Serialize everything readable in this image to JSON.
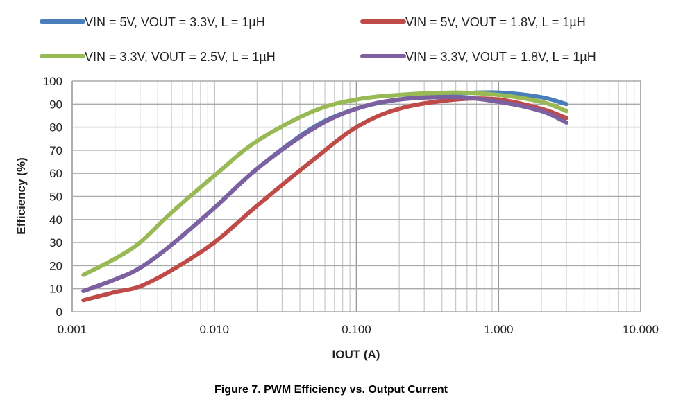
{
  "chart_data": {
    "type": "line",
    "title": "Figure 7. PWM Efficiency vs. Output Current",
    "xlabel": "IOUT (A)",
    "ylabel": "Efficiency (%)",
    "xscale": "log",
    "xlim": [
      0.001,
      10
    ],
    "ylim": [
      0,
      100
    ],
    "grid": true,
    "legend_position": "top",
    "xticks": [
      "0.001",
      "0.010",
      "0.100",
      "1.000",
      "10.000"
    ],
    "yticks": [
      "0",
      "10",
      "20",
      "30",
      "40",
      "50",
      "60",
      "70",
      "80",
      "90",
      "100"
    ],
    "x": [
      0.0012,
      0.002,
      0.003,
      0.005,
      0.01,
      0.02,
      0.05,
      0.1,
      0.2,
      0.5,
      1,
      2,
      3
    ],
    "series": [
      {
        "name": "VIN = 5V, VOUT = 3.3V, L = 1µH",
        "color": "#4a7ebb",
        "values": [
          9,
          14,
          19,
          29,
          45,
          62,
          80,
          88,
          92,
          94.5,
          95,
          93,
          90
        ]
      },
      {
        "name": "VIN = 5V, VOUT = 1.8V, L = 1µH",
        "color": "#be4b48",
        "values": [
          5,
          8.5,
          11,
          18,
          30,
          46,
          66,
          80,
          88,
          92,
          92,
          88,
          84
        ]
      },
      {
        "name": "VIN = 3.3V, VOUT = 2.5V, L = 1µH",
        "color": "#98b954",
        "values": [
          16,
          23,
          30,
          43,
          59,
          74,
          87,
          92,
          94,
          95,
          94,
          91,
          87
        ]
      },
      {
        "name": "VIN = 3.3V, VOUT = 1.8V, L = 1µH",
        "color": "#7d60a0",
        "values": [
          9,
          14,
          19,
          29,
          45,
          62,
          79.5,
          88,
          92,
          93,
          91,
          87,
          82
        ]
      }
    ]
  }
}
